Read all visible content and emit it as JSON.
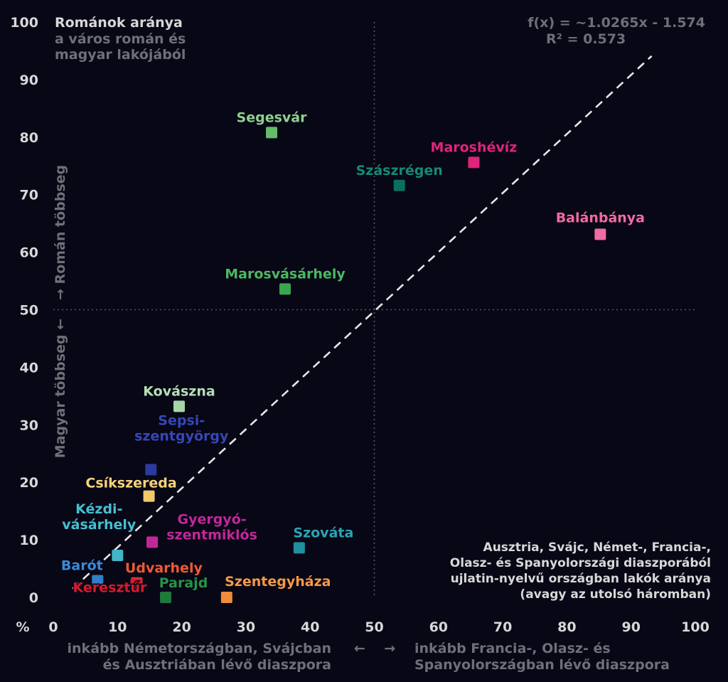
{
  "chart_data": {
    "type": "scatter",
    "title": "Románok aránya",
    "subtitle_lines": [
      "a város román és",
      "magyar lakójából"
    ],
    "x": [
      34,
      65.5,
      53.9,
      85.2,
      36.1,
      19.6,
      15.2,
      14.9,
      15.4,
      10,
      38.3,
      6.9,
      13,
      17.5,
      27,
      12.9
    ],
    "y": [
      80.8,
      75.6,
      71.6,
      63.1,
      53.6,
      33.2,
      22.2,
      17.6,
      9.6,
      7.3,
      8.6,
      2.9,
      2.5,
      0,
      0,
      2.3
    ],
    "points": [
      {
        "name": "Segesvár",
        "label_lines": [
          "Segesvár"
        ],
        "x": 34,
        "y": 80.8,
        "color": "#66bb6a",
        "label_color": "#8fd08f"
      },
      {
        "name": "Maroshévíz",
        "label_lines": [
          "Maroshévíz"
        ],
        "x": 65.5,
        "y": 75.6,
        "color": "#e0237c",
        "label_color": "#e0237c"
      },
      {
        "name": "Szászrégen",
        "label_lines": [
          "Szászrégen"
        ],
        "x": 53.9,
        "y": 71.6,
        "color": "#0b6e5f",
        "label_color": "#148a76"
      },
      {
        "name": "Balánbánya",
        "label_lines": [
          "Balánbánya"
        ],
        "x": 85.2,
        "y": 63.1,
        "color": "#f06aa3",
        "label_color": "#f06aa3"
      },
      {
        "name": "Marosvásárhely",
        "label_lines": [
          "Marosvásárhely"
        ],
        "x": 36.1,
        "y": 53.6,
        "color": "#3aa64f",
        "label_color": "#4cb860"
      },
      {
        "name": "Kovászna",
        "label_lines": [
          "Kovászna"
        ],
        "x": 19.6,
        "y": 33.2,
        "color": "#a5d6a7",
        "label_color": "#b5dfb7"
      },
      {
        "name": "Sepsiszentgyörgy",
        "label_lines": [
          "Sepsi-",
          "szentgyörgy"
        ],
        "x": 15.2,
        "y": 22.2,
        "color": "#2a3a9e",
        "label_color": "#3547b8"
      },
      {
        "name": "Csíkszereda",
        "label_lines": [
          "Csíkszereda"
        ],
        "x": 14.9,
        "y": 17.6,
        "color": "#f3c96a",
        "label_color": "#f7d27a"
      },
      {
        "name": "Gyergyószentmiklós",
        "label_lines": [
          "Gyergyó-",
          "szentmiklós"
        ],
        "x": 15.4,
        "y": 9.6,
        "color": "#c2279a",
        "label_color": "#c2279a"
      },
      {
        "name": "Kézdivásárhely",
        "label_lines": [
          "Kézdi-",
          "vásárhely"
        ],
        "x": 10,
        "y": 7.3,
        "color": "#40b6c8",
        "label_color": "#46bfd1"
      },
      {
        "name": "Szováta",
        "label_lines": [
          "Szováta"
        ],
        "x": 38.3,
        "y": 8.6,
        "color": "#2190a0",
        "label_color": "#2aa3b4"
      },
      {
        "name": "Barót",
        "label_lines": [
          "Barót"
        ],
        "x": 6.9,
        "y": 2.9,
        "color": "#2f7fc8",
        "label_color": "#3a8ad8"
      },
      {
        "name": "Udvarhely",
        "label_lines": [
          "Udvarhely"
        ],
        "x": 13,
        "y": 2.5,
        "color": "#e8452a",
        "label_color": "#f05a34"
      },
      {
        "name": "Parajd",
        "label_lines": [
          "Parajd"
        ],
        "x": 17.5,
        "y": 0,
        "color": "#1e7a3a",
        "label_color": "#279447"
      },
      {
        "name": "Szentegyháza",
        "label_lines": [
          "Szentegyháza"
        ],
        "x": 27,
        "y": 0,
        "color": "#f08c3a",
        "label_color": "#f59a45"
      },
      {
        "name": "Keresztúr",
        "label_lines": [
          "Keresztúr"
        ],
        "x": 12.9,
        "y": 2.3,
        "color": "#d81b2c",
        "label_color": "#d81b2c"
      }
    ],
    "xlim": [
      0,
      100
    ],
    "ylim": [
      0,
      100
    ],
    "x_ticks": [
      0,
      10,
      20,
      30,
      40,
      50,
      60,
      70,
      80,
      90,
      100
    ],
    "y_ticks": [
      0,
      10,
      20,
      30,
      40,
      50,
      60,
      70,
      80,
      90,
      100
    ],
    "unit_label": "%",
    "reference_lines": {
      "x": 50,
      "y": 50
    },
    "regression": {
      "formula": "f(x) = ~1.0265x - 1.574",
      "r2": "R² = 0.573",
      "slope": 1.0265,
      "intercept": -1.574,
      "x_range": [
        3,
        93.2
      ]
    },
    "y_axis_label_upper": "→ Román többseg",
    "y_axis_label_lower": "Magyar többseg ←",
    "xlabel_left": [
      "inkább Németországban, Svájcban",
      "és Ausztriában lévő diaszpora"
    ],
    "xlabel_right": [
      "inkább Francia-, Olasz- és",
      "Spanyolországban lévő diaszpora"
    ],
    "xlabel_arrows": "←    →",
    "x_description": [
      "Ausztria, Svájc, Német-, Francia-,",
      "Olasz- és Spanyolországi diaszporából",
      "ujlatin-nyelvű országban lakók aránya",
      "(avagy az utolsó háromban)"
    ],
    "grid": false
  }
}
